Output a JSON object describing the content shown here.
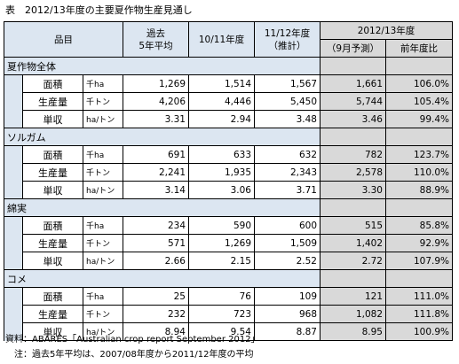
{
  "title": "表　2012/13年度の主要夏作物生産見通し",
  "headers": {
    "item": "品目",
    "avg5": "過去\n5年平均",
    "y1011": "10/11年度",
    "y1112": "11/12年度\n（推計）",
    "y1213": "2012/13年度",
    "forecast": "（9月予測）",
    "yoy": "前年度比"
  },
  "groups": [
    {
      "name": "夏作物全体",
      "rows": [
        {
          "label": "面積",
          "unit": "千ha",
          "avg5": "1,269",
          "y1011": "1,514",
          "y1112": "1,567",
          "forecast": "1,661",
          "yoy": "106.0%"
        },
        {
          "label": "生産量",
          "unit": "千トン",
          "avg5": "4,206",
          "y1011": "4,446",
          "y1112": "5,450",
          "forecast": "5,744",
          "yoy": "105.4%"
        },
        {
          "label": "単収",
          "unit": "ha/トン",
          "avg5": "3.31",
          "y1011": "2.94",
          "y1112": "3.48",
          "forecast": "3.46",
          "yoy": "99.4%"
        }
      ]
    },
    {
      "name": "ソルガム",
      "rows": [
        {
          "label": "面積",
          "unit": "千ha",
          "avg5": "691",
          "y1011": "633",
          "y1112": "632",
          "forecast": "782",
          "yoy": "123.7%"
        },
        {
          "label": "生産量",
          "unit": "千トン",
          "avg5": "2,241",
          "y1011": "1,935",
          "y1112": "2,343",
          "forecast": "2,578",
          "yoy": "110.0%"
        },
        {
          "label": "単収",
          "unit": "ha/トン",
          "avg5": "3.14",
          "y1011": "3.06",
          "y1112": "3.71",
          "forecast": "3.30",
          "yoy": "88.9%"
        }
      ]
    },
    {
      "name": "綿実",
      "rows": [
        {
          "label": "面積",
          "unit": "千ha",
          "avg5": "234",
          "y1011": "590",
          "y1112": "600",
          "forecast": "515",
          "yoy": "85.8%"
        },
        {
          "label": "生産量",
          "unit": "千トン",
          "avg5": "571",
          "y1011": "1,269",
          "y1112": "1,509",
          "forecast": "1,402",
          "yoy": "92.9%"
        },
        {
          "label": "単収",
          "unit": "ha/トン",
          "avg5": "2.66",
          "y1011": "2.15",
          "y1112": "2.52",
          "forecast": "2.72",
          "yoy": "107.9%"
        }
      ]
    },
    {
      "name": "コメ",
      "rows": [
        {
          "label": "面積",
          "unit": "千ha",
          "avg5": "25",
          "y1011": "76",
          "y1112": "109",
          "forecast": "121",
          "yoy": "111.0%"
        },
        {
          "label": "生産量",
          "unit": "千トン",
          "avg5": "232",
          "y1011": "723",
          "y1112": "968",
          "forecast": "1,082",
          "yoy": "111.8%"
        },
        {
          "label": "単収",
          "unit": "ha/トン",
          "avg5": "8.94",
          "y1011": "9.54",
          "y1112": "8.87",
          "forecast": "8.95",
          "yoy": "100.9%"
        }
      ]
    }
  ],
  "footer": {
    "source": "資料：ABARES「Australian crop report September 2012」",
    "note": "　注：過去5年平均は、2007/08年度から2011/12年度の平均"
  }
}
